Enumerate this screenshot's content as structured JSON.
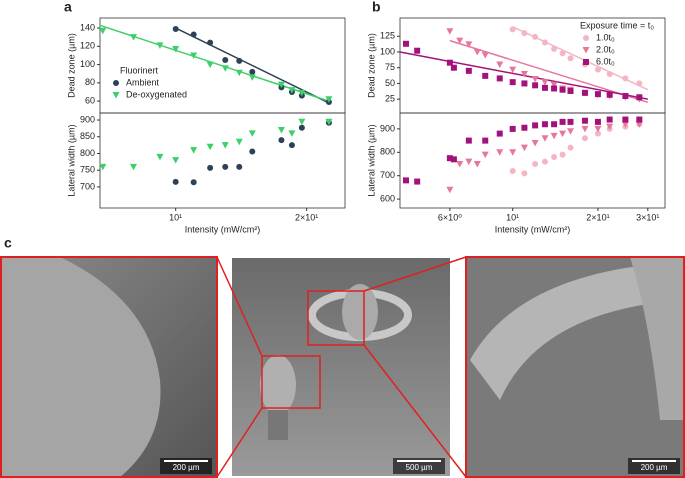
{
  "panels": [
    "a",
    "b",
    "c"
  ],
  "chart_data": [
    {
      "type": "scatter",
      "log_x": true,
      "xlim": [
        6.7,
        24.5
      ],
      "ylim": [
        47,
        151
      ],
      "yticks": [
        60,
        80,
        100,
        120,
        140
      ],
      "ylabel": "Dead zone (µm)",
      "legend": "lower left",
      "legend_title": "Fluorinert",
      "series": [
        {
          "name": "Ambient",
          "color": "#2d4157",
          "marker": "o",
          "x": [
            10,
            11,
            12,
            13,
            14,
            15,
            17.5,
            18.5,
            19.5,
            22.5
          ],
          "values": [
            139,
            133,
            124,
            105,
            104,
            92,
            75,
            70,
            66,
            59
          ]
        },
        {
          "name": "De-oxygenated",
          "color": "#3ccf6a",
          "marker": "v",
          "x": [
            6.8,
            8,
            9.2,
            10,
            11,
            12,
            13,
            14,
            15,
            17.5,
            18.5,
            19.5,
            22.5
          ],
          "values": [
            137,
            130,
            121,
            117,
            110,
            100,
            96,
            91,
            86,
            78,
            72,
            69,
            62
          ]
        }
      ],
      "fits": [
        {
          "color": "#2d4157",
          "x": [
            10,
            22.5
          ],
          "values": [
            140,
            58
          ]
        },
        {
          "color": "#3ccf6a",
          "x": [
            6.7,
            22.5
          ],
          "values": [
            143,
            60
          ]
        }
      ]
    },
    {
      "type": "scatter",
      "log_x": true,
      "xlim": [
        6.7,
        24.5
      ],
      "ylim": [
        637,
        921
      ],
      "yticks": [
        700,
        750,
        800,
        850,
        900
      ],
      "xticks": [
        {
          "value": 10,
          "label": "10¹"
        },
        {
          "value": 20,
          "label": "2×10¹"
        }
      ],
      "xlabel": "Intensity (mW/cm²)",
      "ylabel": "Lateral width (µm)",
      "series": [
        {
          "color": "#2d4157",
          "marker": "o",
          "x": [
            10,
            11,
            12,
            13,
            14,
            15,
            17.5,
            18.5,
            19.5,
            22.5
          ],
          "values": [
            715,
            714,
            757,
            760,
            760,
            806,
            840,
            825,
            877,
            892
          ]
        },
        {
          "color": "#3ccf6a",
          "marker": "v",
          "x": [
            6.8,
            8,
            9.2,
            10,
            11,
            12,
            13,
            14,
            15,
            17.5,
            18.5,
            19.5,
            22.5
          ],
          "values": [
            760,
            760,
            790,
            780,
            810,
            820,
            825,
            835,
            860,
            870,
            860,
            895,
            895
          ]
        }
      ]
    },
    {
      "type": "scatter",
      "log_x": true,
      "xlim": [
        4,
        34.5
      ],
      "ylim": [
        3,
        154
      ],
      "yticks": [
        25,
        50,
        75,
        100,
        125
      ],
      "ylabel": "Dead zone (µm)",
      "legend": "upper right",
      "legend_title": "Exposure time = t₀",
      "series": [
        {
          "name": "1.0t₀",
          "color": "#f4b6c2",
          "marker": "o",
          "x": [
            10,
            11,
            12,
            13,
            14,
            15,
            16,
            18,
            20,
            22,
            25,
            28
          ],
          "values": [
            136,
            130,
            124,
            115,
            105,
            98,
            90,
            80,
            72,
            65,
            58,
            50
          ]
        },
        {
          "name": "2.0t₀",
          "color": "#e8769a",
          "marker": "v",
          "x": [
            6,
            6.5,
            7,
            7.5,
            8,
            9,
            10,
            11,
            12,
            13,
            14,
            15,
            16,
            18,
            20,
            22,
            25,
            28
          ],
          "values": [
            133,
            118,
            112,
            100,
            95,
            80,
            72,
            65,
            57,
            52,
            48,
            42,
            40,
            35,
            32,
            30,
            28,
            25
          ]
        },
        {
          "name": "6.0t₀",
          "color": "#a3127b",
          "marker": "s",
          "x": [
            4.2,
            4.6,
            6,
            6.2,
            7,
            8,
            9,
            10,
            11,
            12,
            13,
            14,
            15,
            16,
            18,
            20,
            22,
            25,
            28
          ],
          "values": [
            113,
            102,
            83,
            75,
            70,
            62,
            58,
            52,
            50,
            47,
            43,
            42,
            40,
            38,
            35,
            33,
            32,
            30,
            28
          ]
        }
      ],
      "fits": [
        {
          "color": "#f4b6c2",
          "x": [
            10,
            30
          ],
          "values": [
            140,
            40
          ]
        },
        {
          "color": "#e8769a",
          "x": [
            6,
            30
          ],
          "values": [
            118,
            20
          ]
        },
        {
          "color": "#a3127b",
          "x": [
            4,
            30
          ],
          "values": [
            100,
            25
          ]
        }
      ]
    },
    {
      "type": "scatter",
      "log_x": true,
      "xlim": [
        4,
        34.5
      ],
      "ylim": [
        562,
        968
      ],
      "yticks": [
        600,
        700,
        800,
        900
      ],
      "xticks": [
        {
          "value": 6,
          "label": "6×10⁰"
        },
        {
          "value": 10,
          "label": "10¹"
        },
        {
          "value": 20,
          "label": "2×10¹"
        },
        {
          "value": 30,
          "label": "3×10¹"
        }
      ],
      "xlabel": "Intensity (mW/cm²)",
      "ylabel": "Lateral width (µm)",
      "series": [
        {
          "color": "#f4b6c2",
          "marker": "o",
          "x": [
            10,
            11,
            12,
            13,
            14,
            15,
            16,
            18,
            20,
            22,
            25,
            28
          ],
          "values": [
            720,
            710,
            750,
            760,
            780,
            790,
            820,
            860,
            880,
            900,
            910,
            920
          ]
        },
        {
          "color": "#e8769a",
          "marker": "v",
          "x": [
            6,
            6.5,
            7,
            7.5,
            8,
            9,
            10,
            11,
            12,
            13,
            14,
            15,
            16,
            18,
            20,
            22,
            25,
            28
          ],
          "values": [
            640,
            750,
            760,
            750,
            790,
            800,
            800,
            820,
            840,
            860,
            870,
            880,
            890,
            900,
            900,
            910,
            920,
            920
          ]
        },
        {
          "color": "#a3127b",
          "marker": "s",
          "x": [
            4.2,
            4.6,
            6,
            6.2,
            7,
            8,
            9,
            10,
            11,
            12,
            13,
            14,
            15,
            16,
            18,
            20,
            22,
            25,
            28
          ],
          "values": [
            680,
            675,
            775,
            770,
            850,
            850,
            880,
            900,
            905,
            915,
            920,
            920,
            930,
            930,
            935,
            930,
            940,
            940,
            940
          ]
        }
      ]
    }
  ],
  "images": [
    {
      "scale_bar": "200 µm"
    },
    {
      "scale_bar": "500 µm"
    },
    {
      "scale_bar": "200 µm"
    }
  ]
}
